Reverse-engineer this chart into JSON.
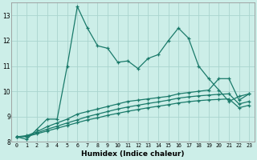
{
  "xlabel": "Humidex (Indice chaleur)",
  "bg_color": "#cceee8",
  "grid_color": "#aad4ce",
  "line_color": "#1a7a6a",
  "xlim": [
    -0.5,
    23.5
  ],
  "ylim": [
    8.0,
    13.5
  ],
  "yticks": [
    8,
    9,
    10,
    11,
    12,
    13
  ],
  "xticks": [
    0,
    1,
    2,
    3,
    4,
    5,
    6,
    7,
    8,
    9,
    10,
    11,
    12,
    13,
    14,
    15,
    16,
    17,
    18,
    19,
    20,
    21,
    22,
    23
  ],
  "s1_x": [
    0,
    1,
    2,
    3,
    4,
    5,
    6,
    7,
    8,
    9,
    10,
    11,
    12,
    13,
    14,
    15,
    16,
    17,
    18,
    19,
    20,
    21,
    22,
    23
  ],
  "s1_y": [
    8.2,
    8.1,
    8.5,
    8.9,
    8.9,
    11.0,
    13.35,
    12.5,
    11.8,
    11.7,
    11.15,
    11.2,
    10.9,
    11.3,
    11.45,
    12.0,
    12.5,
    12.1,
    11.0,
    10.5,
    10.05,
    9.6,
    9.8,
    9.9
  ],
  "s2_x": [
    0,
    1,
    2,
    3,
    4,
    5,
    6,
    7,
    8,
    9,
    10,
    11,
    12,
    13,
    14,
    15,
    16,
    17,
    18,
    19,
    20,
    21,
    22,
    23
  ],
  "s2_y": [
    8.2,
    8.25,
    8.4,
    8.6,
    8.75,
    8.9,
    9.1,
    9.2,
    9.3,
    9.4,
    9.5,
    9.6,
    9.65,
    9.7,
    9.75,
    9.8,
    9.9,
    9.95,
    10.0,
    10.05,
    10.5,
    10.5,
    9.65,
    9.9
  ],
  "s3_x": [
    0,
    1,
    2,
    3,
    4,
    5,
    6,
    7,
    8,
    9,
    10,
    11,
    12,
    13,
    14,
    15,
    16,
    17,
    18,
    19,
    20,
    21,
    22,
    23
  ],
  "s3_y": [
    8.2,
    8.22,
    8.35,
    8.5,
    8.62,
    8.75,
    8.87,
    9.0,
    9.1,
    9.2,
    9.3,
    9.38,
    9.45,
    9.52,
    9.58,
    9.65,
    9.73,
    9.78,
    9.82,
    9.85,
    9.88,
    9.9,
    9.5,
    9.6
  ],
  "s4_x": [
    0,
    1,
    2,
    3,
    4,
    5,
    6,
    7,
    8,
    9,
    10,
    11,
    12,
    13,
    14,
    15,
    16,
    17,
    18,
    19,
    20,
    21,
    22,
    23
  ],
  "s4_y": [
    8.2,
    8.21,
    8.32,
    8.43,
    8.54,
    8.65,
    8.76,
    8.87,
    8.95,
    9.05,
    9.13,
    9.21,
    9.28,
    9.35,
    9.41,
    9.47,
    9.54,
    9.59,
    9.63,
    9.66,
    9.68,
    9.7,
    9.35,
    9.45
  ]
}
